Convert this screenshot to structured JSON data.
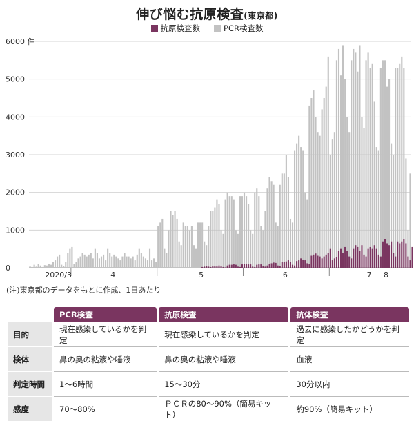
{
  "title": "伸び悩む抗原検査",
  "title_suffix": "(東京都)",
  "legend": [
    {
      "label": "抗原検査数",
      "color": "#7a3560"
    },
    {
      "label": "PCR検査数",
      "color": "#c2c2c2"
    }
  ],
  "note": "(注)東京都のデータをもとに作成、1日あたり",
  "chart_data": {
    "type": "bar",
    "title": "伸び悩む抗原検査",
    "y_unit": "件",
    "ylim": [
      0,
      6000
    ],
    "y_ticks": [
      0,
      1000,
      2000,
      3000,
      4000,
      5000,
      6000
    ],
    "y_tick_labels": [
      "0",
      "1000",
      "2000",
      "3000",
      "4000",
      "5000",
      "6000 件"
    ],
    "x_tick_labels": [
      "2020/3",
      "4",
      "5",
      "6",
      "7",
      "8"
    ],
    "series": [
      {
        "name": "PCR検査数",
        "color": "#c2c2c2",
        "values": [
          50,
          20,
          80,
          30,
          100,
          60,
          20,
          70,
          60,
          100,
          80,
          150,
          200,
          300,
          350,
          80,
          50,
          150,
          400,
          500,
          550,
          100,
          150,
          250,
          300,
          400,
          350,
          300,
          350,
          400,
          250,
          500,
          400,
          250,
          300,
          350,
          200,
          500,
          400,
          300,
          350,
          300,
          250,
          200,
          300,
          400,
          300,
          300,
          250,
          300,
          200,
          350,
          500,
          400,
          300,
          250,
          200,
          500,
          200,
          250,
          150,
          1100,
          1200,
          1300,
          500,
          400,
          1000,
          1500,
          1400,
          1500,
          1300,
          700,
          600,
          1200,
          1100,
          1100,
          1000,
          1100,
          600,
          500,
          1200,
          1200,
          1200,
          700,
          600,
          1100,
          1500,
          1500,
          1600,
          1800,
          1700,
          1000,
          900,
          1800,
          2000,
          1900,
          1900,
          1800,
          1000,
          900,
          1900,
          1900,
          2000,
          1900,
          1700,
          1000,
          900,
          2000,
          2100,
          1900,
          1100,
          1000,
          1500,
          2100,
          2400,
          2300,
          2200,
          1200,
          1100,
          2200,
          2500,
          2500,
          3000,
          2400,
          1300,
          1200,
          3100,
          3300,
          3500,
          3200,
          3100,
          2000,
          1800,
          4300,
          4500,
          4700,
          4000,
          3600,
          3500,
          4200,
          4500,
          4800,
          5600,
          3000,
          3400,
          3600,
          5500,
          5800,
          5100,
          5900,
          5000,
          4000,
          3600,
          5500,
          5800,
          5700,
          5200,
          5900,
          4000,
          3700,
          5500,
          5700,
          5300,
          5400,
          4400,
          3200,
          3100,
          5300,
          5500,
          5500,
          4800,
          5000,
          3300,
          3000,
          5300,
          5300,
          5400,
          5600,
          5300,
          2900,
          1000,
          2500
        ]
      },
      {
        "name": "抗原検査数",
        "color": "#7a3560",
        "values": [
          0,
          0,
          0,
          0,
          0,
          0,
          0,
          0,
          0,
          0,
          0,
          0,
          0,
          0,
          0,
          0,
          0,
          0,
          0,
          0,
          0,
          0,
          0,
          0,
          0,
          0,
          0,
          0,
          0,
          0,
          0,
          0,
          0,
          0,
          0,
          0,
          0,
          0,
          0,
          0,
          0,
          0,
          0,
          0,
          0,
          0,
          0,
          0,
          0,
          0,
          0,
          0,
          0,
          0,
          0,
          0,
          0,
          0,
          0,
          0,
          0,
          0,
          0,
          0,
          0,
          0,
          0,
          0,
          0,
          0,
          0,
          0,
          0,
          0,
          0,
          0,
          0,
          0,
          0,
          0,
          0,
          0,
          20,
          30,
          40,
          30,
          20,
          40,
          50,
          50,
          60,
          50,
          20,
          10,
          60,
          80,
          80,
          90,
          80,
          30,
          20,
          90,
          100,
          100,
          90,
          90,
          30,
          20,
          80,
          90,
          90,
          40,
          30,
          60,
          100,
          120,
          140,
          130,
          60,
          40,
          150,
          160,
          170,
          200,
          160,
          80,
          60,
          180,
          200,
          250,
          210,
          200,
          120,
          100,
          320,
          350,
          380,
          320,
          300,
          250,
          300,
          350,
          400,
          500,
          200,
          250,
          280,
          450,
          500,
          400,
          550,
          450,
          300,
          250,
          500,
          600,
          550,
          450,
          600,
          350,
          300,
          500,
          550,
          500,
          600,
          500,
          350,
          300,
          700,
          750,
          650,
          600,
          700,
          400,
          300,
          700,
          650,
          700,
          750,
          650,
          300,
          200,
          550
        ]
      }
    ]
  },
  "table": {
    "headers": [
      "PCR検査",
      "抗原検査",
      "抗体検査"
    ],
    "rows": [
      {
        "label": "目的",
        "cells": [
          "現在感染しているかを判定",
          "現在感染しているかを判定",
          "過去に感染したかどうかを判定"
        ]
      },
      {
        "label": "検体",
        "cells": [
          "鼻の奥の粘液や唾液",
          "鼻の奥の粘液や唾液",
          "血液"
        ]
      },
      {
        "label": "判定時間",
        "cells": [
          "1～6時間",
          "15～30分",
          "30分以内"
        ]
      },
      {
        "label": "感度",
        "cells": [
          "70～80%",
          "ＰＣＲの80～90%（簡易キット）",
          "約90%（簡易キット）"
        ]
      }
    ]
  }
}
